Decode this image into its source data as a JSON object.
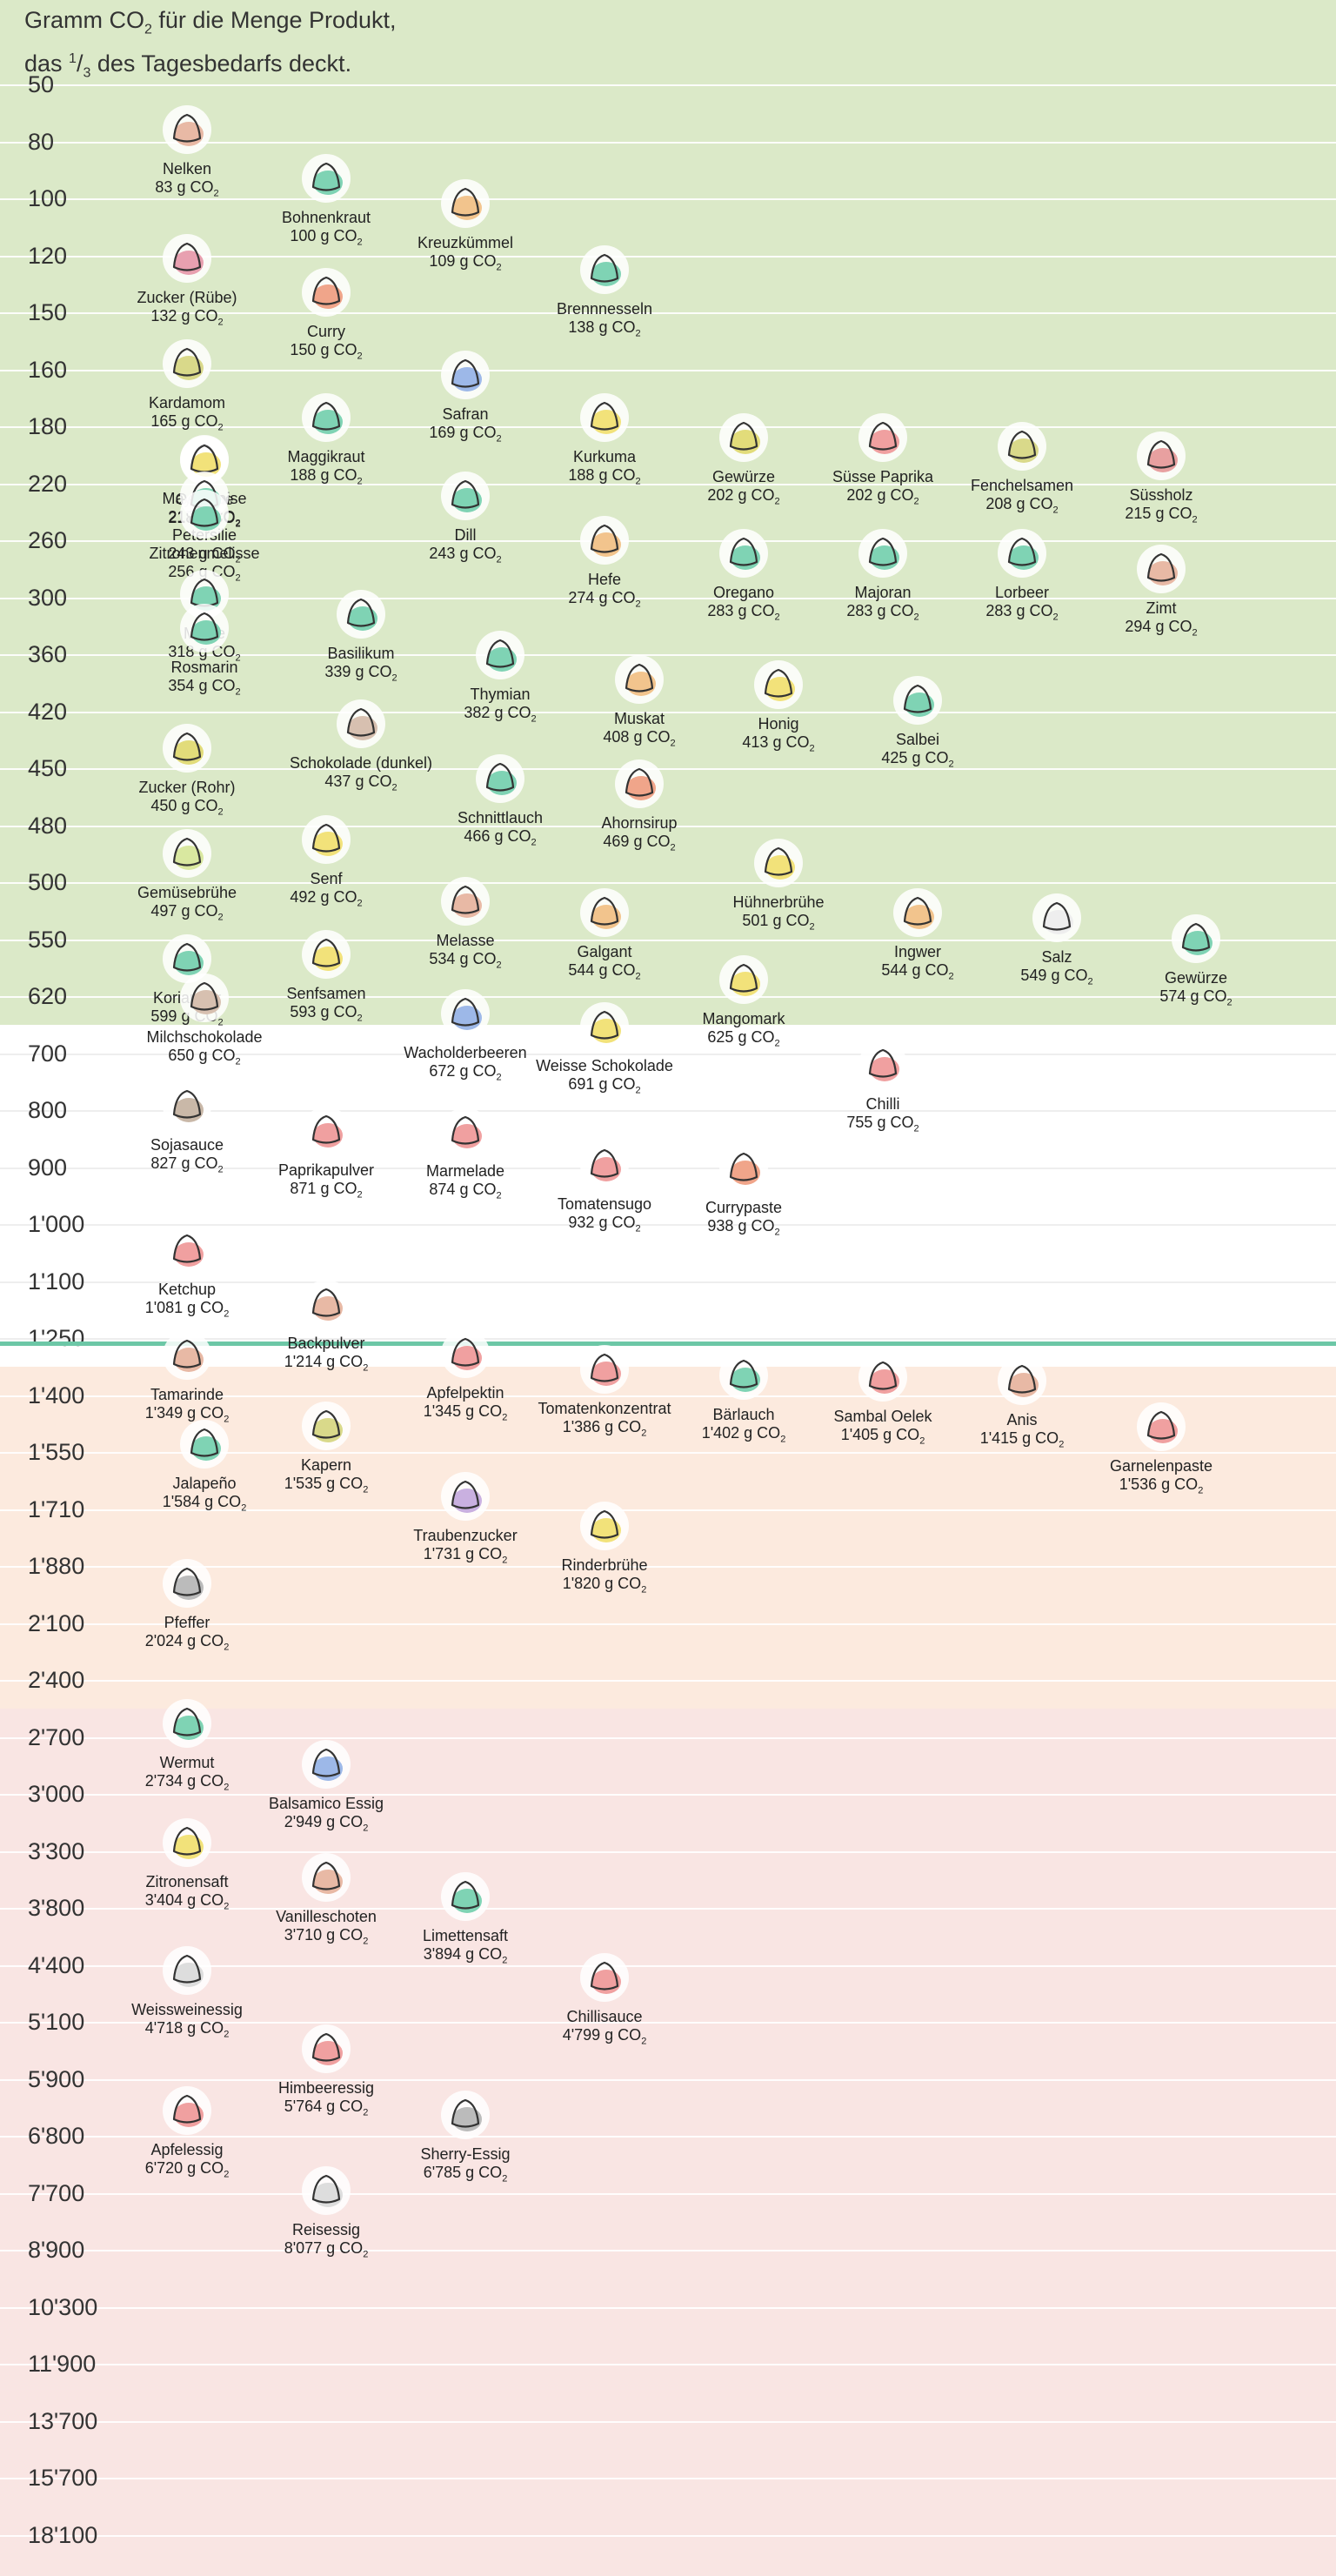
{
  "title": {
    "line1_pre": "Gramm CO",
    "line1_sub": "2",
    "line1_post": " für die Menge Produkt,",
    "line2_pre": "das ",
    "line2_sup": "1",
    "line2_mid": "/",
    "line2_sub": "3",
    "line2_post": " des Tagesbedarfs deckt."
  },
  "unit": {
    "pre": " g CO",
    "sub": "2"
  },
  "colors": {
    "green": "#dbe9c8",
    "white": "#ffffff",
    "peach": "#fceade",
    "pink": "#f9e5e3",
    "divider": "#6cc7a6",
    "icon_fill": "#ffffff",
    "icon_stroke": "#333333"
  },
  "chart_data": {
    "type": "scatter",
    "title": "Gramm CO2 für die Menge Produkt, das 1/3 des Tagesbedarfs deckt.",
    "ylabel": "Gramm CO2",
    "y_ticks": [
      "50",
      "80",
      "100",
      "120",
      "150",
      "160",
      "180",
      "220",
      "260",
      "300",
      "360",
      "420",
      "450",
      "480",
      "500",
      "550",
      "620",
      "700",
      "800",
      "900",
      "1'000",
      "1'100",
      "1'250",
      "1'400",
      "1'550",
      "1'710",
      "1'880",
      "2'100",
      "2'400",
      "2'700",
      "3'000",
      "3'300",
      "3'800",
      "4'400",
      "5'100",
      "5'900",
      "6'800",
      "7'700",
      "8'900",
      "10'300",
      "11'900",
      "13'700",
      "15'700",
      "18'100"
    ],
    "y_scale": "ordinal bands, increasing downward",
    "zones": [
      {
        "name": "green",
        "from": "50",
        "to": "620"
      },
      {
        "name": "white",
        "from": "700",
        "to": "1'250"
      },
      {
        "name": "peach",
        "from": "1'400",
        "to": "2'400"
      },
      {
        "name": "pink",
        "from": "2'700",
        "to": "18'100"
      }
    ],
    "points": [
      {
        "name": "Nelken",
        "value": 83,
        "label": "83",
        "icon": "cloves-icon",
        "tint": "#e8b9a5"
      },
      {
        "name": "Bohnenkraut",
        "value": 100,
        "label": "100",
        "icon": "herb-sprig-icon",
        "tint": "#7fd3b4"
      },
      {
        "name": "Kreuzkümmel",
        "value": 109,
        "label": "109",
        "icon": "cumin-plant-icon",
        "tint": "#f2c48d"
      },
      {
        "name": "Zucker (Rübe)",
        "value": 132,
        "label": "132",
        "icon": "sugar-beet-icon",
        "tint": "#e8a0b0"
      },
      {
        "name": "Brennnesseln",
        "value": 138,
        "label": "138",
        "icon": "nettle-icon",
        "tint": "#7fd3b4"
      },
      {
        "name": "Curry",
        "value": 150,
        "label": "150",
        "icon": "spice-bowl-icon",
        "tint": "#f0a58a"
      },
      {
        "name": "Kardamom",
        "value": 165,
        "label": "165",
        "icon": "cardamom-pod-icon",
        "tint": "#d9d98a"
      },
      {
        "name": "Safran",
        "value": 169,
        "label": "169",
        "icon": "saffron-flower-icon",
        "tint": "#9db8e8"
      },
      {
        "name": "Maggikraut",
        "value": 188,
        "label": "188",
        "icon": "lovage-icon",
        "tint": "#7fd3b4"
      },
      {
        "name": "Kurkuma",
        "value": 188,
        "label": "188",
        "icon": "turmeric-bowl-icon",
        "tint": "#f2e27a"
      },
      {
        "name": "Gewürze",
        "value": 202,
        "label": "202",
        "icon": "spice-bag-icon",
        "tint": "#e2dc7a"
      },
      {
        "name": "Süsse Paprika",
        "value": 202,
        "label": "202",
        "icon": "paprika-mound-icon",
        "tint": "#f0a0a0"
      },
      {
        "name": "Fenchelsamen",
        "value": 208,
        "label": "208",
        "icon": "seed-scoop-icon",
        "tint": "#d9d98a"
      },
      {
        "name": "Süssholz",
        "value": 215,
        "label": "215",
        "icon": "licorice-sticks-icon",
        "tint": "#e8a0a0"
      },
      {
        "name": "Mayonnaise",
        "value": 217,
        "label": "217",
        "icon": "mayonnaise-pack-icon",
        "tint": "#eeeeee"
      },
      {
        "name": "Gelatine",
        "value": 218,
        "label": "218",
        "icon": "jelly-dessert-icon",
        "tint": "#f2e27a"
      },
      {
        "name": "Dill",
        "value": 243,
        "label": "243",
        "icon": "dill-icon",
        "tint": "#7fd3b4"
      },
      {
        "name": "Petersilie",
        "value": 243,
        "label": "243",
        "icon": "parsley-icon",
        "tint": "#7fd3b4"
      },
      {
        "name": "Zitronenmelisse",
        "value": 256,
        "label": "256",
        "icon": "lemon-balm-icon",
        "tint": "#7fd3b4"
      },
      {
        "name": "Hefe",
        "value": 274,
        "label": "274",
        "icon": "yeast-cube-icon",
        "tint": "#f2c48d"
      },
      {
        "name": "Zimt",
        "value": 294,
        "label": "294",
        "icon": "cinnamon-icon",
        "tint": "#e8b9a5"
      },
      {
        "name": "Oregano",
        "value": 283,
        "label": "283",
        "icon": "oregano-icon",
        "tint": "#7fd3b4"
      },
      {
        "name": "Majoran",
        "value": 283,
        "label": "283",
        "icon": "marjoram-icon",
        "tint": "#7fd3b4"
      },
      {
        "name": "Lorbeer",
        "value": 283,
        "label": "283",
        "icon": "bay-leaf-icon",
        "tint": "#7fd3b4"
      },
      {
        "name": "Minze",
        "value": 318,
        "label": "318",
        "icon": "mint-icon",
        "tint": "#7fd3b4"
      },
      {
        "name": "Basilikum",
        "value": 339,
        "label": "339",
        "icon": "basil-icon",
        "tint": "#7fd3b4"
      },
      {
        "name": "Rosmarin",
        "value": 354,
        "label": "354",
        "icon": "rosemary-icon",
        "tint": "#7fd3b4"
      },
      {
        "name": "Thymian",
        "value": 382,
        "label": "382",
        "icon": "thyme-icon",
        "tint": "#7fd3b4"
      },
      {
        "name": "Muskat",
        "value": 408,
        "label": "408",
        "icon": "nutmeg-icon",
        "tint": "#f2c48d"
      },
      {
        "name": "Honig",
        "value": 413,
        "label": "413",
        "icon": "honey-jar-icon",
        "tint": "#f2e27a"
      },
      {
        "name": "Salbei",
        "value": 425,
        "label": "425",
        "icon": "sage-icon",
        "tint": "#7fd3b4"
      },
      {
        "name": "Schokolade (dunkel)",
        "value": 437,
        "label": "437",
        "icon": "dark-chocolate-icon",
        "tint": "#d7c0b0"
      },
      {
        "name": "Zucker (Rohr)",
        "value": 450,
        "label": "450",
        "icon": "cane-sugar-icon",
        "tint": "#e2dc7a"
      },
      {
        "name": "Schnittlauch",
        "value": 466,
        "label": "466",
        "icon": "chives-icon",
        "tint": "#7fd3b4"
      },
      {
        "name": "Ahornsirup",
        "value": 469,
        "label": "469",
        "icon": "maple-syrup-icon",
        "tint": "#f0a58a"
      },
      {
        "name": "Senf",
        "value": 492,
        "label": "492",
        "icon": "mustard-tube-icon",
        "tint": "#f2e27a"
      },
      {
        "name": "Hühnerbrühe",
        "value": 501,
        "label": "501",
        "icon": "chicken-soup-icon",
        "tint": "#f2e27a"
      },
      {
        "name": "Gemüsebrühe",
        "value": 497,
        "label": "497",
        "icon": "vegetable-soup-icon",
        "tint": "#d9e8a0"
      },
      {
        "name": "Melasse",
        "value": 534,
        "label": "534",
        "icon": "molasses-jar-icon",
        "tint": "#e8b9a5"
      },
      {
        "name": "Galgant",
        "value": 544,
        "label": "544",
        "icon": "galangal-icon",
        "tint": "#f2c48d"
      },
      {
        "name": "Ingwer",
        "value": 544,
        "label": "544",
        "icon": "ginger-icon",
        "tint": "#f2c48d"
      },
      {
        "name": "Salz",
        "value": 549,
        "label": "549",
        "icon": "salt-shaker-icon",
        "tint": "#eeeeee"
      },
      {
        "name": "Koriander",
        "value": 599,
        "label": "599",
        "icon": "coriander-icon",
        "tint": "#7fd3b4"
      },
      {
        "name": "Gewürze",
        "value": 574,
        "label": "574",
        "icon": "mortar-icon",
        "tint": "#7fd3b4"
      },
      {
        "name": "Senfsamen",
        "value": 593,
        "label": "593",
        "icon": "mustard-seed-icon",
        "tint": "#f2e27a"
      },
      {
        "name": "Mangomark",
        "value": 625,
        "label": "625",
        "icon": "mango-bowl-icon",
        "tint": "#f2e27a"
      },
      {
        "name": "Wacholderbeeren",
        "value": 672,
        "label": "672",
        "icon": "juniper-icon",
        "tint": "#9db8e8"
      },
      {
        "name": "Milchschokolade",
        "value": 650,
        "label": "650",
        "icon": "milk-chocolate-icon",
        "tint": "#d7c0b0"
      },
      {
        "name": "Weisse Schokolade",
        "value": 691,
        "label": "691",
        "icon": "white-chocolate-icon",
        "tint": "#f2e27a"
      },
      {
        "name": "Chilli",
        "value": 755,
        "label": "755",
        "icon": "chilli-scoop-icon",
        "tint": "#f0a0a0"
      },
      {
        "name": "Paprikapulver",
        "value": 871,
        "label": "871",
        "icon": "paprika-powder-icon",
        "tint": "#f0a0a0"
      },
      {
        "name": "Sojasauce",
        "value": 827,
        "label": "827",
        "icon": "soy-sauce-icon",
        "tint": "#c9b8a8"
      },
      {
        "name": "Marmelade",
        "value": 874,
        "label": "874",
        "icon": "jam-jar-icon",
        "tint": "#f0a0a0"
      },
      {
        "name": "Currypaste",
        "value": 938,
        "label": "938",
        "icon": "curry-paste-icon",
        "tint": "#f0a58a"
      },
      {
        "name": "Tomatensugo",
        "value": 932,
        "label": "932",
        "icon": "tomato-sauce-jar-icon",
        "tint": "#f0a0a0"
      },
      {
        "name": "Ketchup",
        "value": 1081,
        "label": "1'081",
        "icon": "ketchup-bottle-icon",
        "tint": "#f0a0a0"
      },
      {
        "name": "Backpulver",
        "value": 1214,
        "label": "1'214",
        "icon": "baking-powder-icon",
        "tint": "#e8b9a5"
      },
      {
        "name": "Tomatenkonzentrat",
        "value": 1386,
        "label": "1'386",
        "icon": "tomato-paste-icon",
        "tint": "#f0a0a0"
      },
      {
        "name": "Apfelpektin",
        "value": 1345,
        "label": "1'345",
        "icon": "apple-pectin-icon",
        "tint": "#f0a0a0"
      },
      {
        "name": "Sambal Oelek",
        "value": 1405,
        "label": "1'405",
        "icon": "sambal-jar-icon",
        "tint": "#f0a0a0"
      },
      {
        "name": "Tamarinde",
        "value": 1349,
        "label": "1'349",
        "icon": "tamarind-icon",
        "tint": "#e8b9a5"
      },
      {
        "name": "Bärlauch",
        "value": 1402,
        "label": "1'402",
        "icon": "wild-garlic-icon",
        "tint": "#7fd3b4"
      },
      {
        "name": "Anis",
        "value": 1415,
        "label": "1'415",
        "icon": "star-anise-icon",
        "tint": "#e8b9a5"
      },
      {
        "name": "Kapern",
        "value": 1535,
        "label": "1'535",
        "icon": "capers-icon",
        "tint": "#d9d98a"
      },
      {
        "name": "Garnelenpaste",
        "value": 1536,
        "label": "1'536",
        "icon": "shrimp-paste-icon",
        "tint": "#f0a0a0"
      },
      {
        "name": "Jalapeño",
        "value": 1584,
        "label": "1'584",
        "icon": "jalapeno-icon",
        "tint": "#7fd3b4"
      },
      {
        "name": "Traubenzucker",
        "value": 1731,
        "label": "1'731",
        "icon": "glucose-icon",
        "tint": "#c9b0e0"
      },
      {
        "name": "Rinderbrühe",
        "value": 1820,
        "label": "1'820",
        "icon": "beef-soup-icon",
        "tint": "#f2e27a"
      },
      {
        "name": "Pfeffer",
        "value": 2024,
        "label": "2'024",
        "icon": "pepper-grinder-icon",
        "tint": "#bbbbbb"
      },
      {
        "name": "Wermut",
        "value": 2734,
        "label": "2'734",
        "icon": "wormwood-icon",
        "tint": "#7fd3b4"
      },
      {
        "name": "Balsamico Essig",
        "value": 2949,
        "label": "2'949",
        "icon": "balsamic-bottle-icon",
        "tint": "#9db8e8"
      },
      {
        "name": "Zitronensaft",
        "value": 3404,
        "label": "3'404",
        "icon": "lemon-juice-icon",
        "tint": "#f2e27a"
      },
      {
        "name": "Vanilleschoten",
        "value": 3710,
        "label": "3'710",
        "icon": "vanilla-icon",
        "tint": "#e8b9a5"
      },
      {
        "name": "Limettensaft",
        "value": 3894,
        "label": "3'894",
        "icon": "lime-juice-icon",
        "tint": "#7fd3b4"
      },
      {
        "name": "Chillisauce",
        "value": 4799,
        "label": "4'799",
        "icon": "chilli-sauce-icon",
        "tint": "#f0a0a0"
      },
      {
        "name": "Weissweinessig",
        "value": 4718,
        "label": "4'718",
        "icon": "white-vinegar-icon",
        "tint": "#dddddd"
      },
      {
        "name": "Himbeeressig",
        "value": 5764,
        "label": "5'764",
        "icon": "raspberry-vinegar-icon",
        "tint": "#f0a0a0"
      },
      {
        "name": "Apfelessig",
        "value": 6720,
        "label": "6'720",
        "icon": "apple-vinegar-icon",
        "tint": "#f0a0a0"
      },
      {
        "name": "Sherry-Essig",
        "value": 6785,
        "label": "6'785",
        "icon": "sherry-vinegar-icon",
        "tint": "#bbbbbb"
      },
      {
        "name": "Reisessig",
        "value": 8077,
        "label": "8'077",
        "icon": "rice-vinegar-icon",
        "tint": "#dddddd"
      }
    ]
  }
}
